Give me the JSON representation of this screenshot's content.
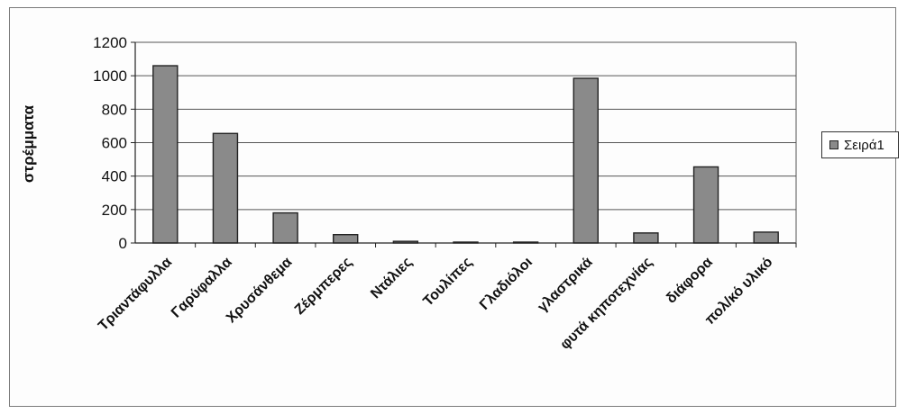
{
  "chart_data": {
    "type": "bar",
    "categories": [
      "Τριαντάφυλλα",
      "Γαρύφαλλα",
      "Χρυσάνθεμα",
      "Ζέρμπερες",
      "Ντάλιες",
      "Τουλίπες",
      "Γλαδιόλοι",
      "γλαστρικά",
      "φυτά κηποτεχνίας",
      "διάφορα",
      "πολ/κό υλικό"
    ],
    "series": [
      {
        "name": "Σειρά1",
        "values": [
          1060,
          655,
          180,
          50,
          10,
          3,
          2,
          985,
          60,
          455,
          65
        ]
      }
    ],
    "yticks": [
      "0",
      "200",
      "400",
      "600",
      "800",
      "1000",
      "1200"
    ],
    "ylim": [
      0,
      1200
    ],
    "xlabel": "",
    "ylabel": "στρέμματα",
    "grid": true,
    "legend_position": "right",
    "colors": {
      "bar": "#8a8a8a",
      "bar_edge": "#222222",
      "grid": "#555555",
      "axis": "#222222"
    }
  }
}
